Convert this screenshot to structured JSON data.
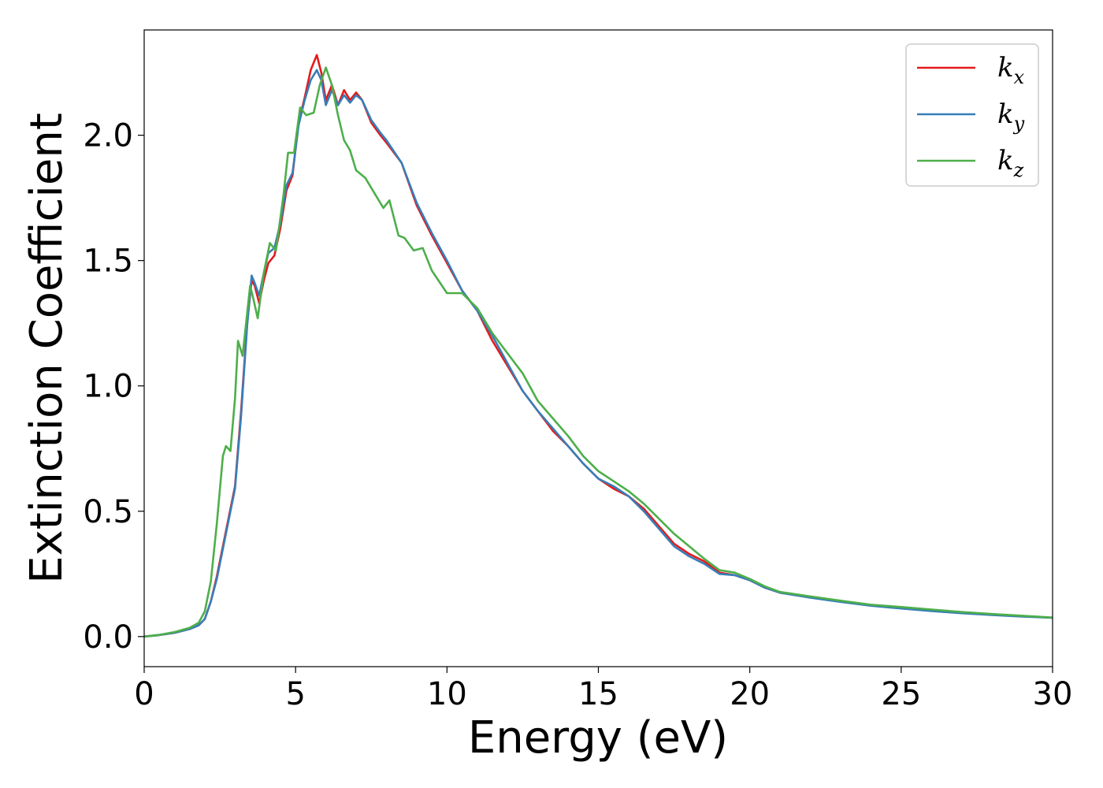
{
  "chart_data": {
    "type": "line",
    "title": "",
    "xlabel": "Energy (eV)",
    "ylabel": "Extinction Coefficient",
    "xlim": [
      0,
      30
    ],
    "ylim": [
      -0.12,
      2.42
    ],
    "xticks": [
      0,
      5,
      10,
      15,
      20,
      25,
      30
    ],
    "yticks": [
      "0.0",
      "0.5",
      "1.0",
      "1.5",
      "2.0"
    ],
    "grid": false,
    "legend_position": "top-right",
    "series": [
      {
        "name": "k",
        "subscript": "x",
        "color": "#e41a1c",
        "points": [
          [
            0,
            0
          ],
          [
            0.5,
            0.006
          ],
          [
            1,
            0.015
          ],
          [
            1.5,
            0.03
          ],
          [
            1.8,
            0.045
          ],
          [
            2.0,
            0.07
          ],
          [
            2.2,
            0.14
          ],
          [
            2.4,
            0.24
          ],
          [
            2.6,
            0.36
          ],
          [
            2.8,
            0.48
          ],
          [
            3.0,
            0.6
          ],
          [
            3.2,
            0.9
          ],
          [
            3.4,
            1.25
          ],
          [
            3.55,
            1.42
          ],
          [
            3.65,
            1.4
          ],
          [
            3.8,
            1.33
          ],
          [
            3.95,
            1.42
          ],
          [
            4.1,
            1.49
          ],
          [
            4.3,
            1.52
          ],
          [
            4.5,
            1.63
          ],
          [
            4.7,
            1.78
          ],
          [
            4.9,
            1.84
          ],
          [
            5.1,
            2.05
          ],
          [
            5.3,
            2.15
          ],
          [
            5.5,
            2.26
          ],
          [
            5.7,
            2.32
          ],
          [
            5.85,
            2.25
          ],
          [
            6.0,
            2.14
          ],
          [
            6.2,
            2.2
          ],
          [
            6.4,
            2.12
          ],
          [
            6.6,
            2.18
          ],
          [
            6.8,
            2.14
          ],
          [
            7.0,
            2.17
          ],
          [
            7.2,
            2.14
          ],
          [
            7.5,
            2.05
          ],
          [
            7.8,
            2.0
          ],
          [
            8.0,
            1.97
          ],
          [
            8.5,
            1.89
          ],
          [
            9.0,
            1.72
          ],
          [
            9.5,
            1.6
          ],
          [
            10.0,
            1.49
          ],
          [
            10.5,
            1.38
          ],
          [
            11.0,
            1.3
          ],
          [
            11.5,
            1.18
          ],
          [
            12.0,
            1.08
          ],
          [
            12.5,
            0.98
          ],
          [
            13.0,
            0.9
          ],
          [
            13.5,
            0.82
          ],
          [
            14.0,
            0.76
          ],
          [
            14.5,
            0.69
          ],
          [
            15.0,
            0.63
          ],
          [
            15.5,
            0.59
          ],
          [
            16.0,
            0.56
          ],
          [
            16.5,
            0.51
          ],
          [
            17.0,
            0.44
          ],
          [
            17.5,
            0.37
          ],
          [
            18.0,
            0.33
          ],
          [
            18.5,
            0.3
          ],
          [
            19.0,
            0.255
          ],
          [
            19.5,
            0.245
          ],
          [
            20.0,
            0.225
          ],
          [
            20.5,
            0.195
          ],
          [
            21.0,
            0.175
          ],
          [
            22.0,
            0.157
          ],
          [
            23.0,
            0.14
          ],
          [
            24.0,
            0.125
          ],
          [
            25.0,
            0.115
          ],
          [
            26.0,
            0.105
          ],
          [
            27.0,
            0.095
          ],
          [
            28.0,
            0.088
          ],
          [
            29.0,
            0.082
          ],
          [
            30.0,
            0.075
          ]
        ]
      },
      {
        "name": "k",
        "subscript": "y",
        "color": "#377eb8",
        "points": [
          [
            0,
            0
          ],
          [
            0.5,
            0.006
          ],
          [
            1,
            0.015
          ],
          [
            1.5,
            0.03
          ],
          [
            1.8,
            0.045
          ],
          [
            2.0,
            0.07
          ],
          [
            2.2,
            0.14
          ],
          [
            2.4,
            0.23
          ],
          [
            2.6,
            0.35
          ],
          [
            2.8,
            0.47
          ],
          [
            3.0,
            0.59
          ],
          [
            3.2,
            0.88
          ],
          [
            3.4,
            1.24
          ],
          [
            3.55,
            1.44
          ],
          [
            3.65,
            1.41
          ],
          [
            3.8,
            1.36
          ],
          [
            3.95,
            1.45
          ],
          [
            4.1,
            1.53
          ],
          [
            4.3,
            1.55
          ],
          [
            4.5,
            1.65
          ],
          [
            4.7,
            1.8
          ],
          [
            4.9,
            1.85
          ],
          [
            5.1,
            2.04
          ],
          [
            5.3,
            2.14
          ],
          [
            5.5,
            2.22
          ],
          [
            5.7,
            2.26
          ],
          [
            5.85,
            2.22
          ],
          [
            6.0,
            2.12
          ],
          [
            6.2,
            2.18
          ],
          [
            6.4,
            2.12
          ],
          [
            6.6,
            2.16
          ],
          [
            6.8,
            2.13
          ],
          [
            7.0,
            2.16
          ],
          [
            7.2,
            2.14
          ],
          [
            7.5,
            2.06
          ],
          [
            7.8,
            2.01
          ],
          [
            8.0,
            1.98
          ],
          [
            8.5,
            1.89
          ],
          [
            9.0,
            1.73
          ],
          [
            9.5,
            1.61
          ],
          [
            10.0,
            1.5
          ],
          [
            10.5,
            1.38
          ],
          [
            11.0,
            1.3
          ],
          [
            11.5,
            1.2
          ],
          [
            12.0,
            1.09
          ],
          [
            12.5,
            0.98
          ],
          [
            13.0,
            0.9
          ],
          [
            13.5,
            0.83
          ],
          [
            14.0,
            0.76
          ],
          [
            14.5,
            0.69
          ],
          [
            15.0,
            0.63
          ],
          [
            15.5,
            0.6
          ],
          [
            16.0,
            0.56
          ],
          [
            16.5,
            0.5
          ],
          [
            17.0,
            0.43
          ],
          [
            17.5,
            0.36
          ],
          [
            18.0,
            0.32
          ],
          [
            18.5,
            0.29
          ],
          [
            19.0,
            0.25
          ],
          [
            19.5,
            0.245
          ],
          [
            20.0,
            0.225
          ],
          [
            20.5,
            0.195
          ],
          [
            21.0,
            0.175
          ],
          [
            22.0,
            0.155
          ],
          [
            23.0,
            0.138
          ],
          [
            24.0,
            0.123
          ],
          [
            25.0,
            0.112
          ],
          [
            26.0,
            0.102
          ],
          [
            27.0,
            0.093
          ],
          [
            28.0,
            0.086
          ],
          [
            29.0,
            0.08
          ],
          [
            30.0,
            0.075
          ]
        ]
      },
      {
        "name": "k",
        "subscript": "z",
        "color": "#4daf4a",
        "points": [
          [
            0,
            0
          ],
          [
            0.5,
            0.007
          ],
          [
            1,
            0.018
          ],
          [
            1.5,
            0.035
          ],
          [
            1.8,
            0.055
          ],
          [
            2.0,
            0.1
          ],
          [
            2.2,
            0.22
          ],
          [
            2.4,
            0.45
          ],
          [
            2.6,
            0.72
          ],
          [
            2.7,
            0.76
          ],
          [
            2.85,
            0.74
          ],
          [
            3.0,
            0.95
          ],
          [
            3.1,
            1.18
          ],
          [
            3.25,
            1.12
          ],
          [
            3.5,
            1.4
          ],
          [
            3.6,
            1.35
          ],
          [
            3.75,
            1.27
          ],
          [
            3.95,
            1.45
          ],
          [
            4.15,
            1.57
          ],
          [
            4.35,
            1.54
          ],
          [
            4.6,
            1.76
          ],
          [
            4.75,
            1.93
          ],
          [
            4.95,
            1.93
          ],
          [
            5.15,
            2.11
          ],
          [
            5.35,
            2.08
          ],
          [
            5.6,
            2.09
          ],
          [
            5.8,
            2.2
          ],
          [
            6.0,
            2.27
          ],
          [
            6.2,
            2.2
          ],
          [
            6.4,
            2.08
          ],
          [
            6.6,
            1.98
          ],
          [
            6.8,
            1.94
          ],
          [
            7.0,
            1.86
          ],
          [
            7.3,
            1.83
          ],
          [
            7.6,
            1.77
          ],
          [
            7.9,
            1.71
          ],
          [
            8.1,
            1.74
          ],
          [
            8.4,
            1.6
          ],
          [
            8.6,
            1.59
          ],
          [
            8.9,
            1.54
          ],
          [
            9.2,
            1.55
          ],
          [
            9.5,
            1.46
          ],
          [
            10.0,
            1.37
          ],
          [
            10.5,
            1.37
          ],
          [
            11.0,
            1.31
          ],
          [
            11.5,
            1.21
          ],
          [
            12.0,
            1.13
          ],
          [
            12.5,
            1.05
          ],
          [
            13.0,
            0.94
          ],
          [
            13.5,
            0.87
          ],
          [
            14.0,
            0.8
          ],
          [
            14.5,
            0.72
          ],
          [
            15.0,
            0.66
          ],
          [
            15.5,
            0.62
          ],
          [
            16.0,
            0.58
          ],
          [
            16.5,
            0.53
          ],
          [
            17.0,
            0.47
          ],
          [
            17.5,
            0.41
          ],
          [
            18.0,
            0.36
          ],
          [
            18.5,
            0.31
          ],
          [
            19.0,
            0.265
          ],
          [
            19.5,
            0.255
          ],
          [
            20.0,
            0.23
          ],
          [
            20.5,
            0.2
          ],
          [
            21.0,
            0.178
          ],
          [
            22.0,
            0.16
          ],
          [
            23.0,
            0.143
          ],
          [
            24.0,
            0.127
          ],
          [
            25.0,
            0.118
          ],
          [
            26.0,
            0.108
          ],
          [
            27.0,
            0.098
          ],
          [
            28.0,
            0.09
          ],
          [
            29.0,
            0.083
          ],
          [
            30.0,
            0.076
          ]
        ]
      }
    ]
  }
}
